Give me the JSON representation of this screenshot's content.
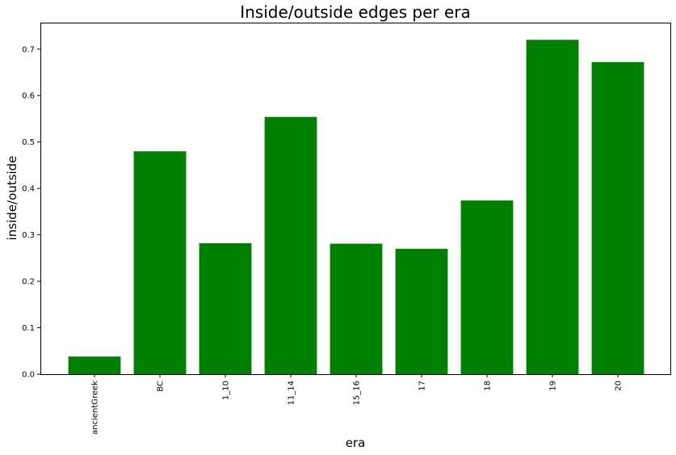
{
  "chart_data": {
    "type": "bar",
    "title": "Inside/outside edges per era",
    "xlabel": "era",
    "ylabel": "inside/outside",
    "categories": [
      "ancientGreek",
      "BC",
      "1_10",
      "11_14",
      "15_16",
      "17",
      "18",
      "19",
      "20"
    ],
    "values": [
      0.038,
      0.48,
      0.282,
      0.554,
      0.281,
      0.27,
      0.374,
      0.72,
      0.672
    ],
    "ylim": [
      0,
      0.757
    ],
    "yticks": [
      "0.0",
      "0.1",
      "0.2",
      "0.3",
      "0.4",
      "0.5",
      "0.6",
      "0.7"
    ],
    "bar_color": "#008000",
    "grid": false,
    "legend": "none"
  }
}
